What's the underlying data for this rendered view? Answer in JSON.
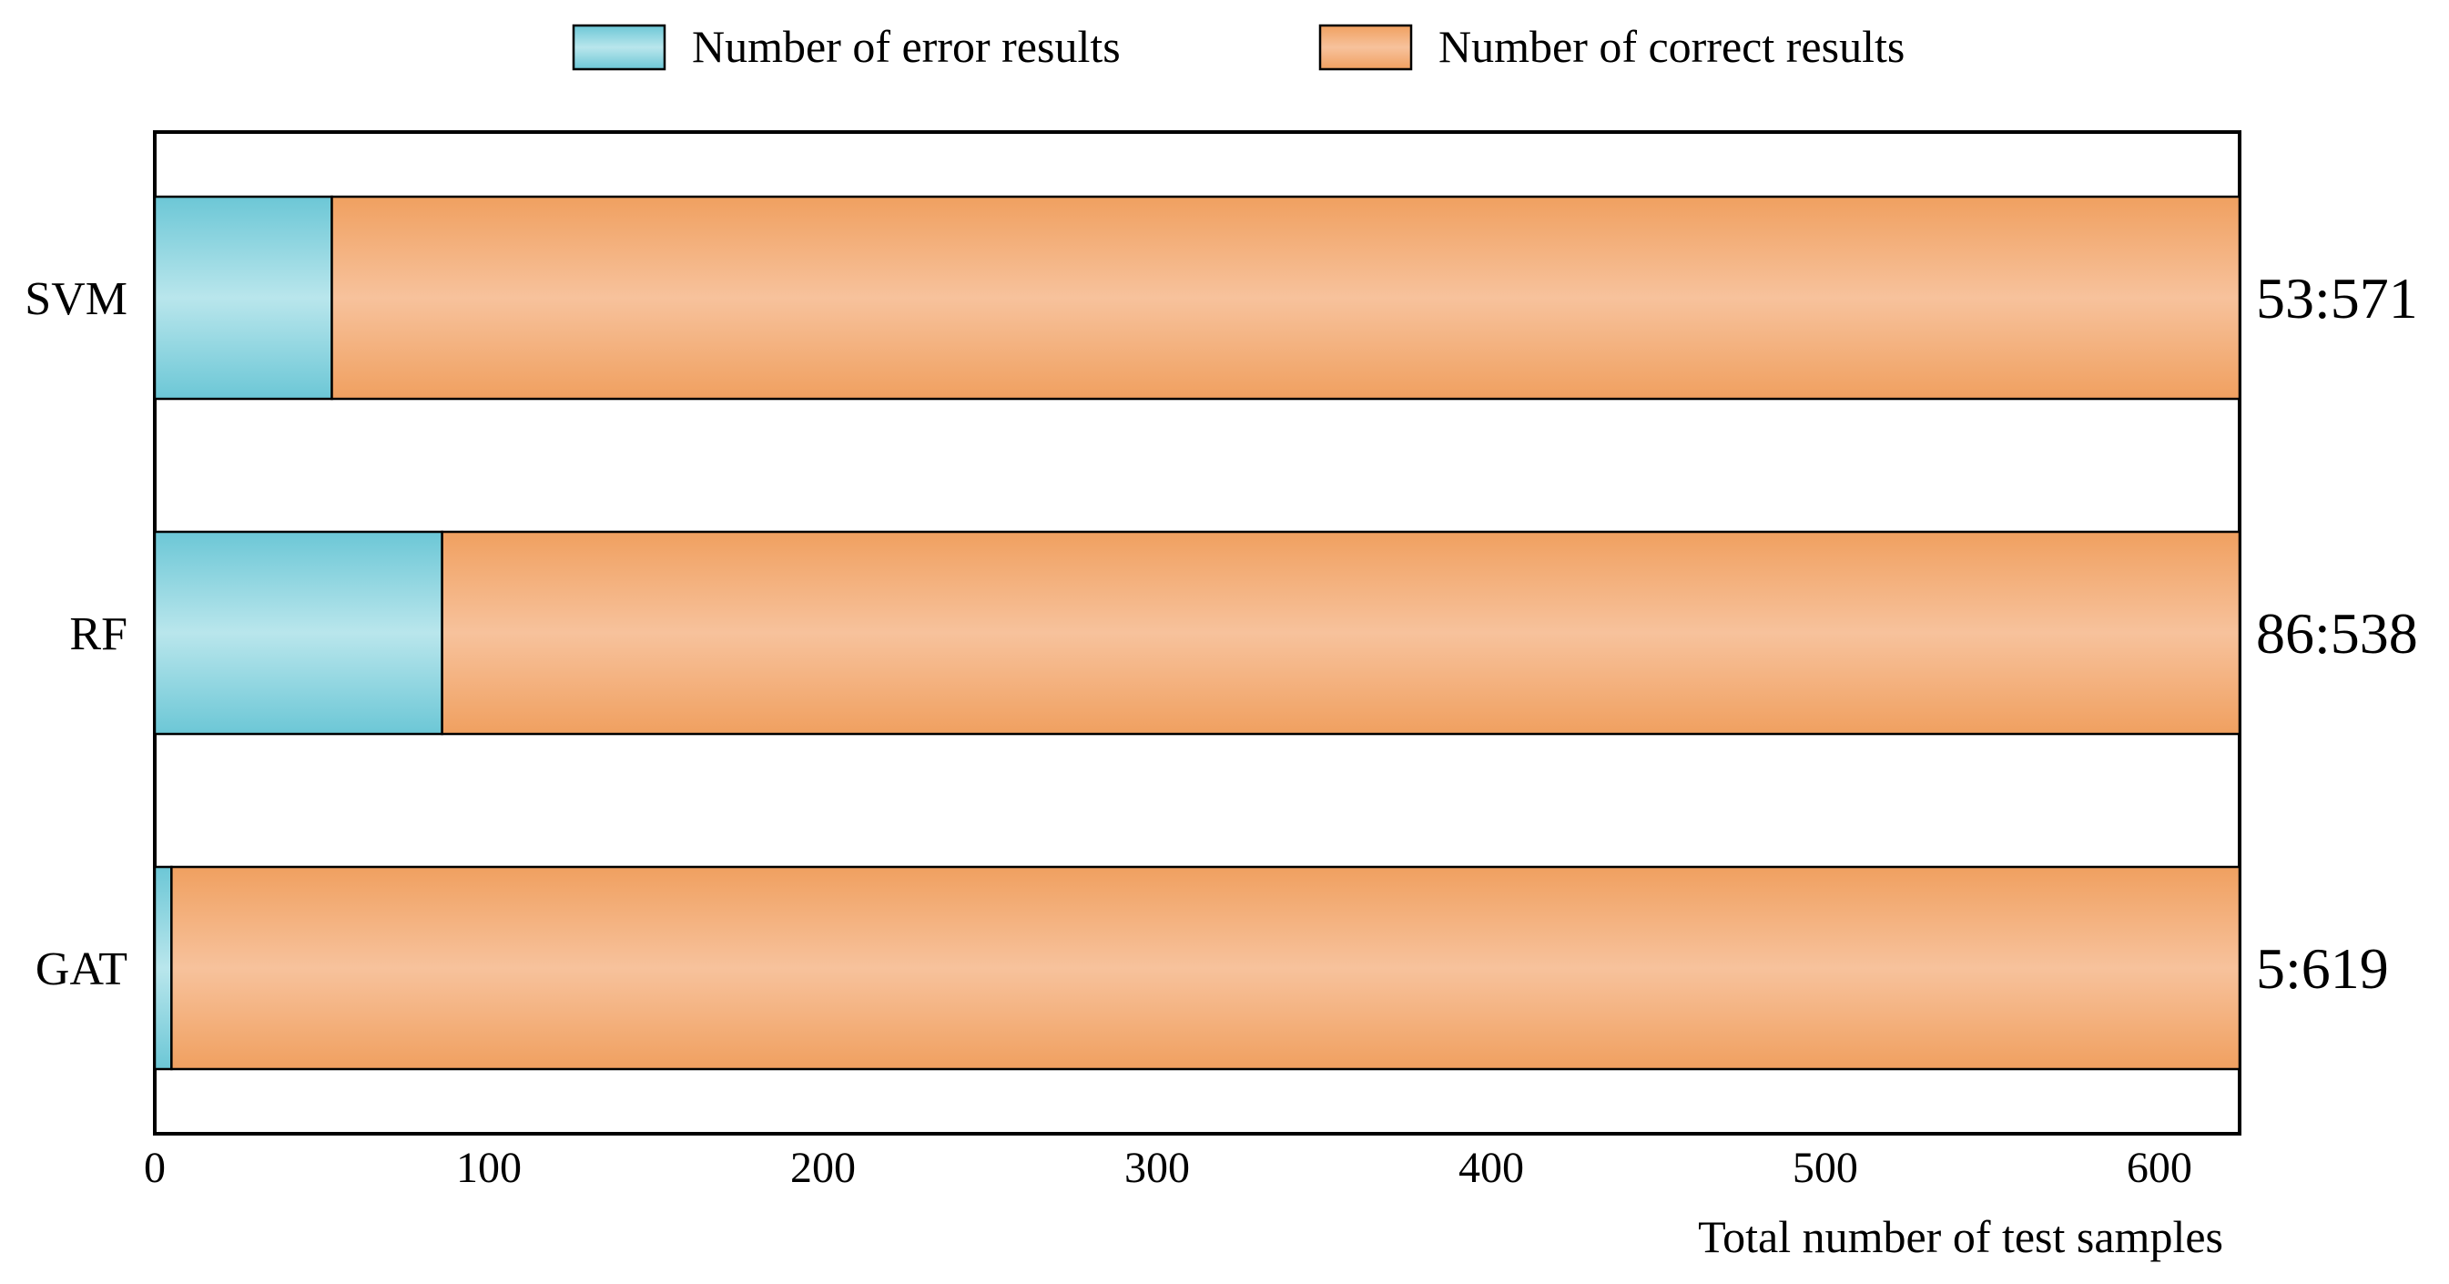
{
  "chart_data": {
    "type": "bar",
    "orientation": "horizontal",
    "stacked": true,
    "categories": [
      "SVM",
      "RF",
      "GAT"
    ],
    "series": [
      {
        "name": "Number of error results",
        "values": [
          53,
          86,
          5
        ],
        "color": "#8ed3df"
      },
      {
        "name": "Number of correct results",
        "values": [
          571,
          538,
          619
        ],
        "color": "#f4b07c"
      }
    ],
    "bar_labels": [
      "53:571",
      "86:538",
      "5:619"
    ],
    "xlabel": "Total number of test samples",
    "ylabel": "",
    "xlim": [
      0,
      624
    ],
    "xticks": [
      0,
      100,
      200,
      300,
      400,
      500,
      600
    ],
    "grid": false,
    "legend_position": "top"
  }
}
